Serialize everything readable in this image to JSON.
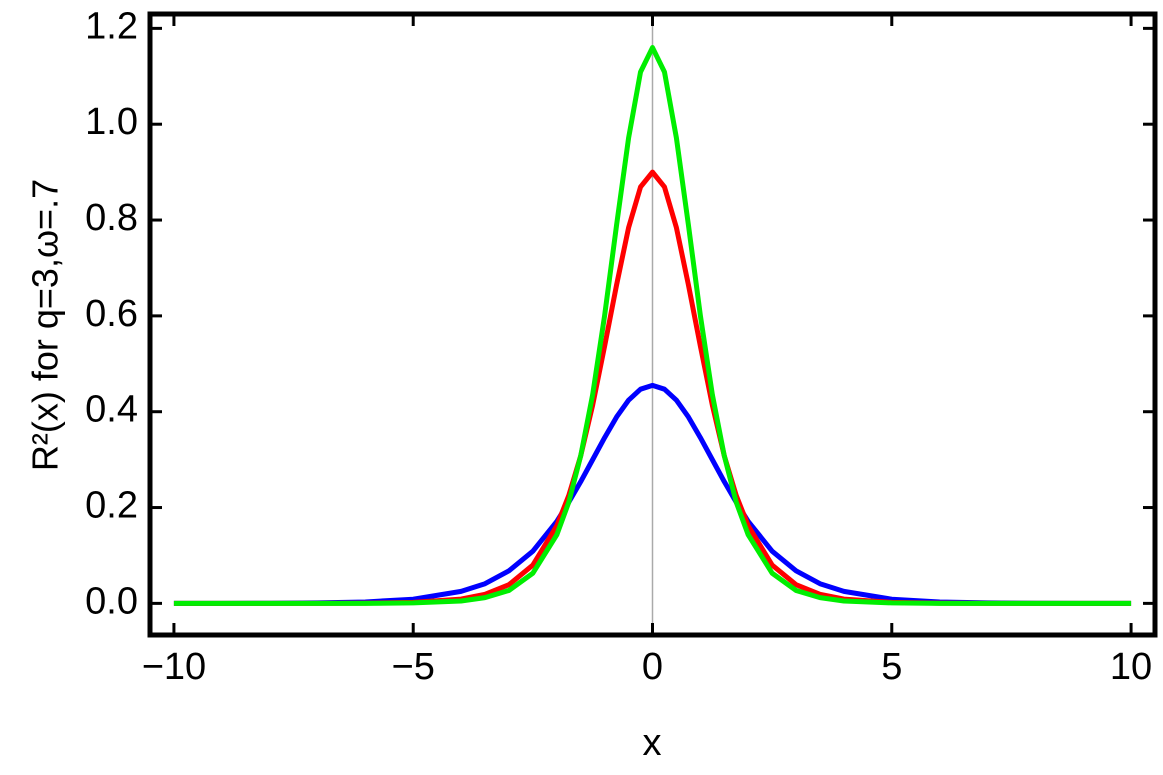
{
  "chart_data": {
    "type": "line",
    "xlabel": "x",
    "ylabel": "R²(x) for q=3,ω=.7",
    "x": [
      -10,
      -9,
      -8,
      -7,
      -6,
      -5,
      -4,
      -3.5,
      -3,
      -2.5,
      -2,
      -1.75,
      -1.5,
      -1.25,
      -1,
      -0.75,
      -0.5,
      -0.25,
      0,
      0.25,
      0.5,
      0.75,
      1,
      1.25,
      1.5,
      1.75,
      2,
      2.5,
      3,
      3.5,
      4,
      5,
      6,
      7,
      8,
      9,
      10
    ],
    "series": [
      {
        "name": "blue",
        "color": "#0000ff",
        "values": [
          0,
          0.0001,
          0.0003,
          0.001,
          0.003,
          0.0086,
          0.025,
          0.041,
          0.068,
          0.109,
          0.171,
          0.211,
          0.254,
          0.3,
          0.346,
          0.389,
          0.424,
          0.447,
          0.455,
          0.447,
          0.424,
          0.389,
          0.346,
          0.3,
          0.254,
          0.211,
          0.171,
          0.109,
          0.068,
          0.041,
          0.025,
          0.0086,
          0.003,
          0.001,
          0.0003,
          0.0001,
          0
        ]
      },
      {
        "name": "red",
        "color": "#ff0000",
        "values": [
          0,
          0,
          0,
          0,
          0.0004,
          0.002,
          0.009,
          0.019,
          0.039,
          0.08,
          0.162,
          0.225,
          0.308,
          0.414,
          0.537,
          0.665,
          0.784,
          0.869,
          0.9,
          0.869,
          0.784,
          0.665,
          0.537,
          0.414,
          0.308,
          0.225,
          0.162,
          0.08,
          0.039,
          0.019,
          0.009,
          0.002,
          0.0004,
          0,
          0,
          0,
          0
        ]
      },
      {
        "name": "green",
        "color": "#00ee00",
        "values": [
          0,
          0,
          0,
          0,
          0,
          0.001,
          0.005,
          0.012,
          0.027,
          0.063,
          0.143,
          0.211,
          0.308,
          0.436,
          0.601,
          0.79,
          0.971,
          1.109,
          1.16,
          1.109,
          0.971,
          0.79,
          0.601,
          0.436,
          0.308,
          0.211,
          0.143,
          0.063,
          0.027,
          0.012,
          0.005,
          0.001,
          0,
          0,
          0,
          0,
          0
        ]
      }
    ],
    "xlim": [
      -10.5,
      10.5
    ],
    "ylim": [
      -0.066,
      1.23
    ],
    "xticks": [
      {
        "value": -10,
        "label": "−10"
      },
      {
        "value": -5,
        "label": "−5"
      },
      0,
      5,
      10
    ],
    "yticks": [
      {
        "value": 0,
        "label": "0.0"
      },
      0.2,
      0.4,
      0.6,
      0.8,
      {
        "value": 1,
        "label": "1.0"
      },
      1.2
    ]
  }
}
